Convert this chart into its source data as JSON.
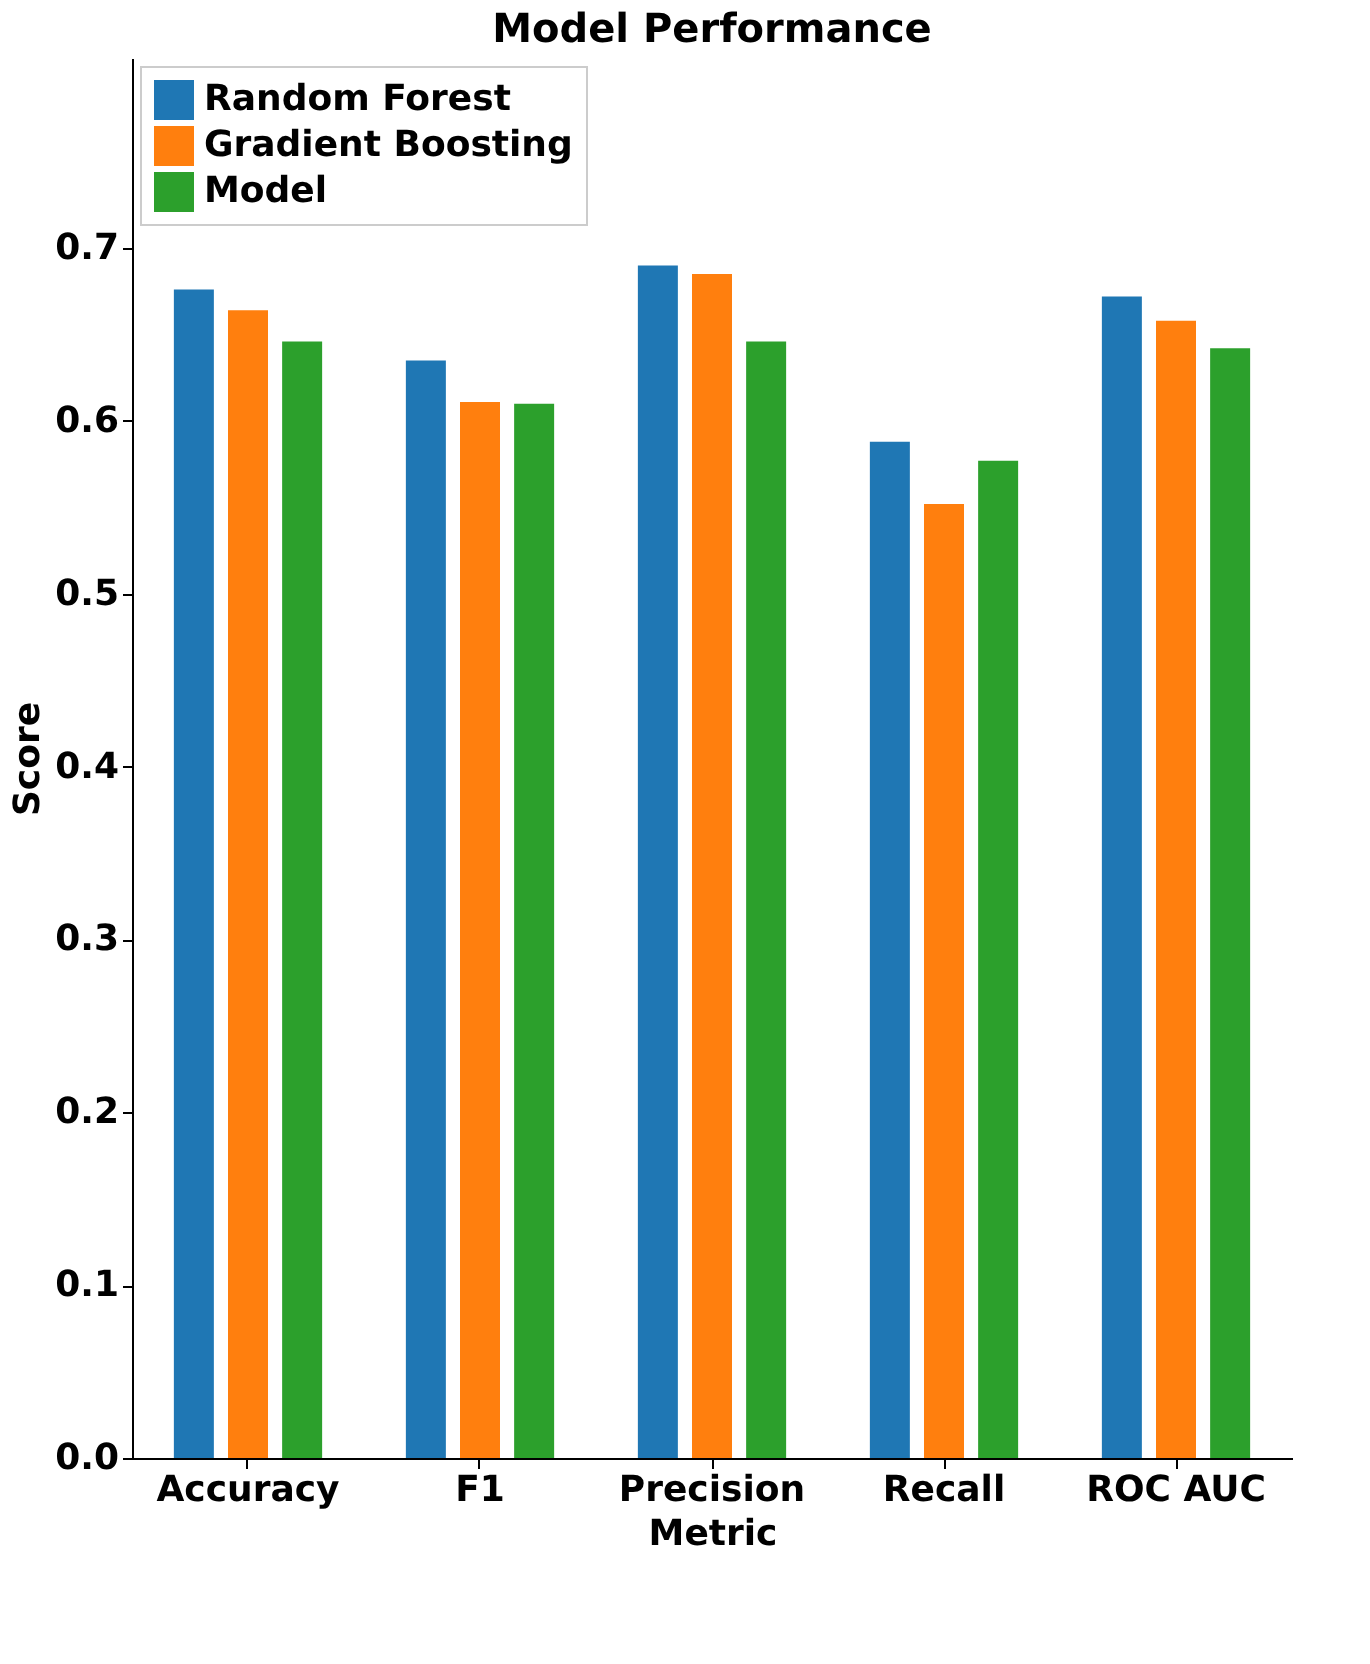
{
  "chart_data": {
    "type": "bar",
    "title": "Model Performance",
    "xlabel": "Metric",
    "ylabel": "Score",
    "categories": [
      "Accuracy",
      "F1",
      "Precision",
      "Recall",
      "ROC AUC"
    ],
    "series": [
      {
        "name": "Random Forest",
        "color": "#1f77b4",
        "values": [
          0.676,
          0.635,
          0.69,
          0.588,
          0.672
        ]
      },
      {
        "name": "Gradient Boosting",
        "color": "#ff7f0e",
        "values": [
          0.664,
          0.611,
          0.685,
          0.552,
          0.658
        ]
      },
      {
        "name": "Model",
        "color": "#2ca02c",
        "values": [
          0.646,
          0.61,
          0.646,
          0.577,
          0.642
        ]
      }
    ],
    "ylim": [
      0,
      0.81
    ],
    "yticks": [
      {
        "value": 0,
        "label": "0.0"
      },
      {
        "value": 0.1,
        "label": "0.1"
      },
      {
        "value": 0.2,
        "label": "0.2"
      },
      {
        "value": 0.3,
        "label": "0.3"
      },
      {
        "value": 0.4,
        "label": "0.4"
      },
      {
        "value": 0.5,
        "label": "0.5"
      },
      {
        "value": 0.6,
        "label": "0.6"
      },
      {
        "value": 0.7,
        "label": "0.7"
      }
    ],
    "grid": false,
    "legend": "top left"
  }
}
